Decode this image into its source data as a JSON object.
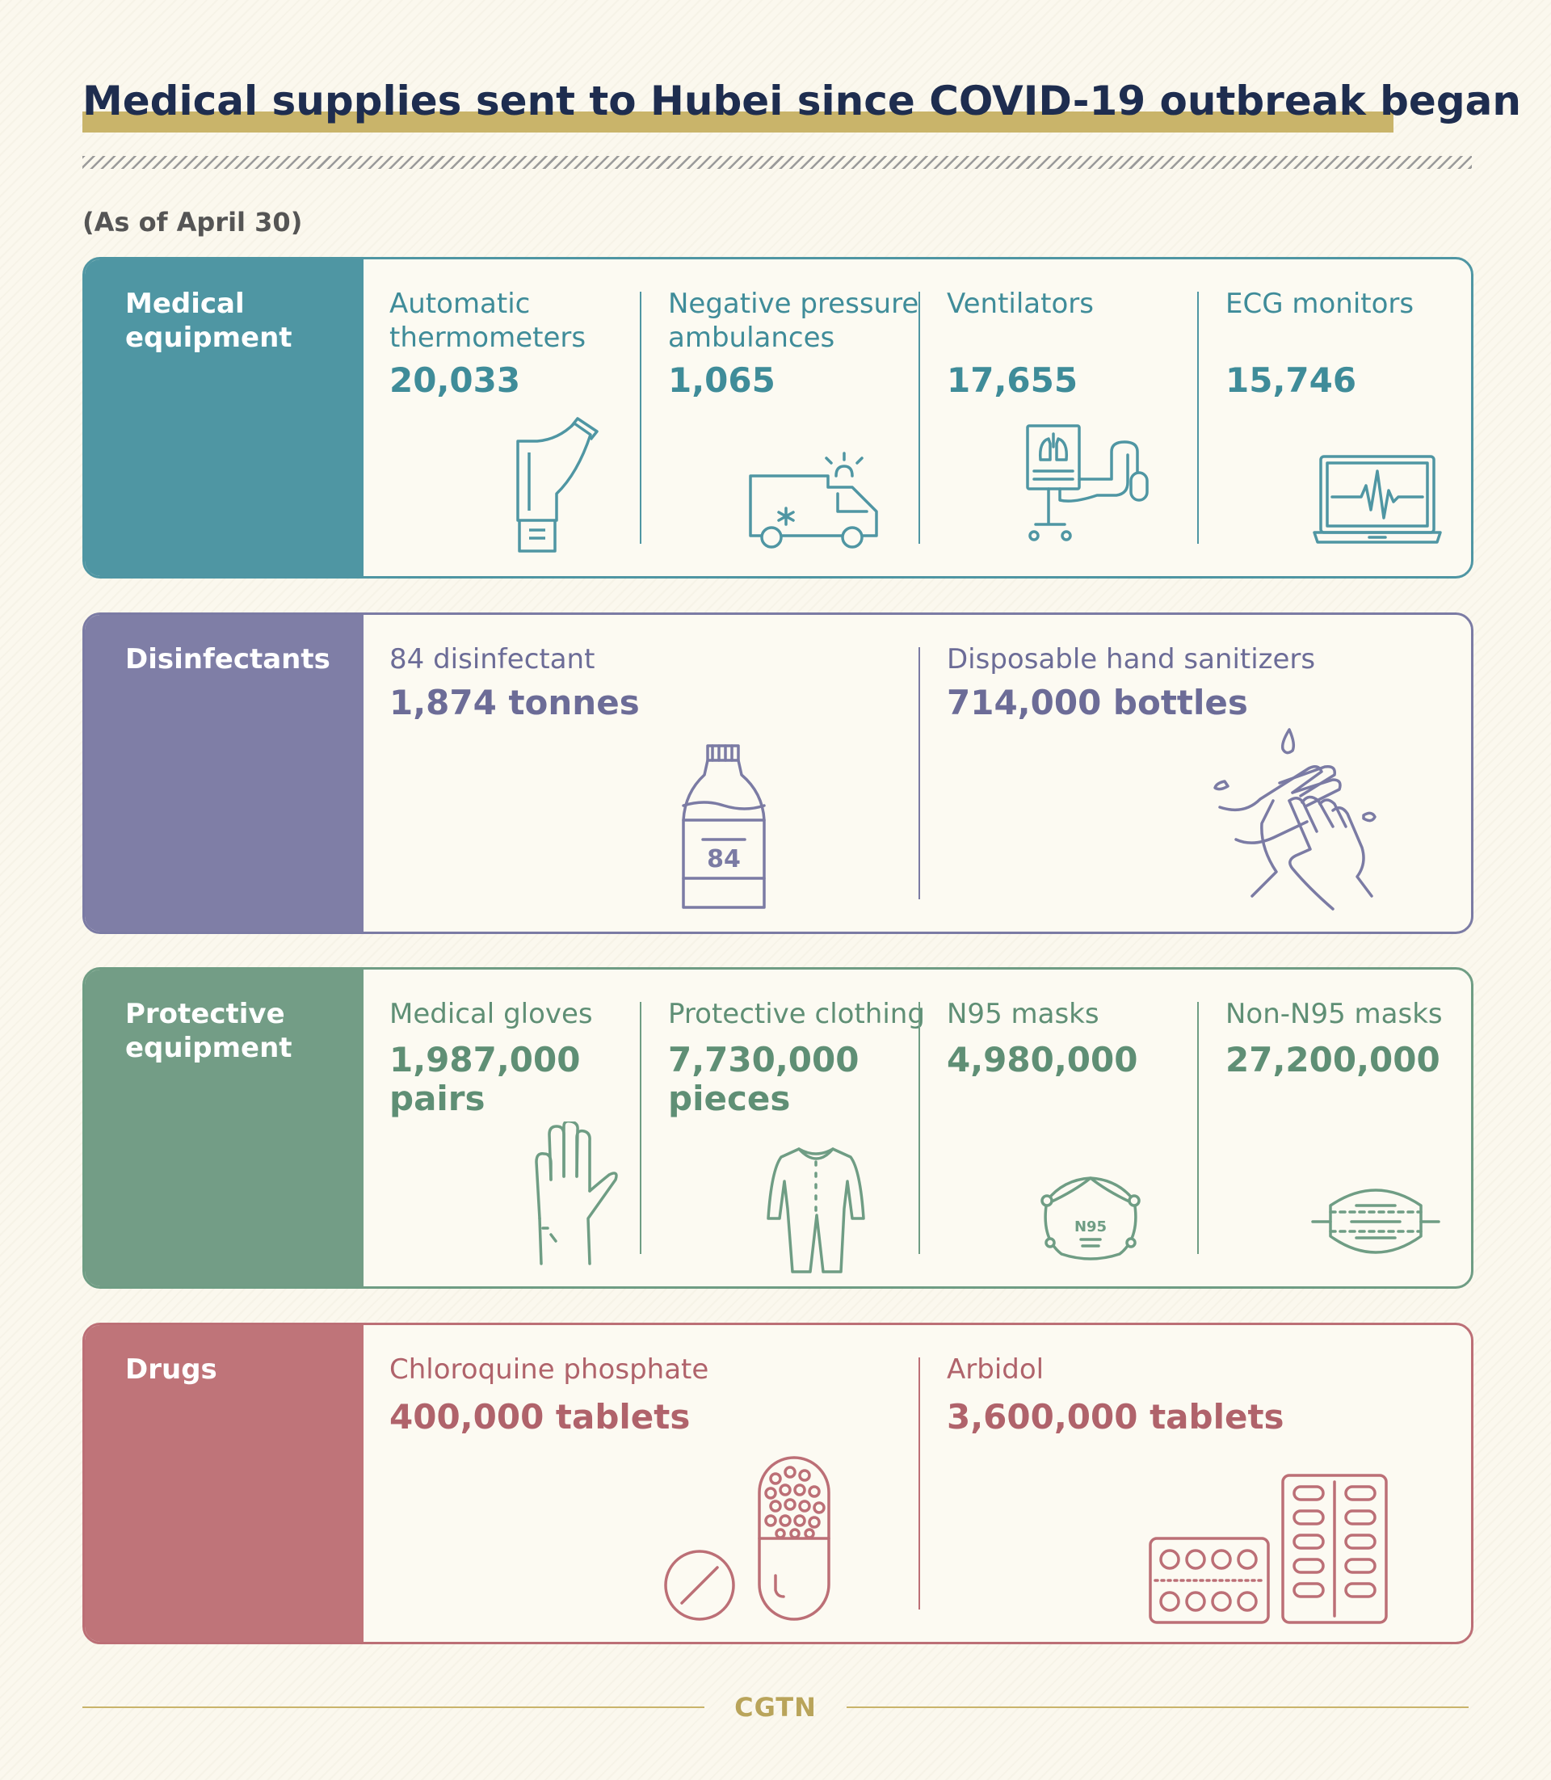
{
  "title": "Medical supplies sent to Hubei since COVID-19 outbreak began",
  "date_note": "(As of April 30)",
  "colors": {
    "title_text": "#1e2d4f",
    "title_highlight": "#c9b46a",
    "medical_equipment": "#4f96a3",
    "disinfectants": "#7b7ba4",
    "protective_equipment": "#6f9d84",
    "drugs": "#bc6f76",
    "brand": "#c9b46a"
  },
  "categories": {
    "medical_equipment": {
      "label": "Medical\nequipment",
      "items": [
        {
          "name": "Automatic\nthermometers",
          "value": "20,033",
          "icon": "thermometer-icon"
        },
        {
          "name": "Negative pressure\nambulances",
          "value": "1,065",
          "icon": "ambulance-icon"
        },
        {
          "name": "Ventilators",
          "value": "17,655",
          "icon": "ventilator-icon"
        },
        {
          "name": "ECG monitors",
          "value": "15,746",
          "icon": "ecg-monitor-icon"
        }
      ]
    },
    "disinfectants": {
      "label": "Disinfectants",
      "items": [
        {
          "name": "84 disinfectant",
          "value": "1,874 tonnes",
          "icon": "disinfectant-bottle-icon",
          "icon_text": "84"
        },
        {
          "name": "Disposable hand sanitizers",
          "value": "714,000 bottles",
          "icon": "washing-hands-icon"
        }
      ]
    },
    "protective_equipment": {
      "label": "Protective\nequipment",
      "items": [
        {
          "name": "Medical gloves",
          "value": "1,987,000\npairs",
          "icon": "glove-icon"
        },
        {
          "name": "Protective clothing",
          "value": "7,730,000\npieces",
          "icon": "protective-suit-icon"
        },
        {
          "name": "N95 masks",
          "value": "4,980,000",
          "icon": "n95-mask-icon",
          "icon_text": "N95"
        },
        {
          "name": "Non-N95 masks",
          "value": "27,200,000",
          "icon": "surgical-mask-icon"
        }
      ]
    },
    "drugs": {
      "label": "Drugs",
      "items": [
        {
          "name": "Chloroquine phosphate",
          "value": "400,000 tablets",
          "icon": "pills-icon"
        },
        {
          "name": "Arbidol",
          "value": "3,600,000 tablets",
          "icon": "blister-pack-icon"
        }
      ]
    }
  },
  "footer": {
    "logo": "CGTN"
  }
}
